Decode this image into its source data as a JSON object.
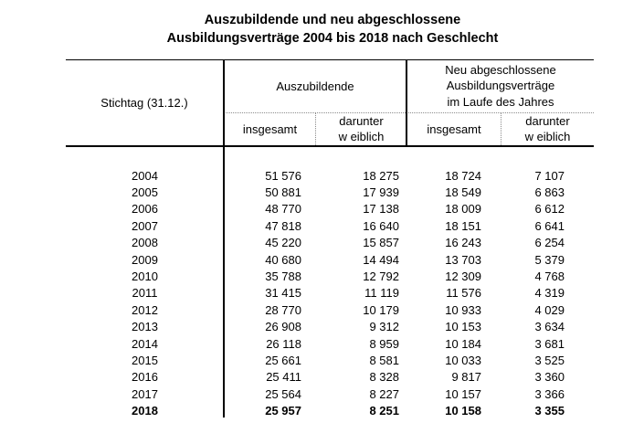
{
  "page": {
    "background_color": "#ffffff",
    "text_color": "#000000",
    "rule_color": "#000000",
    "dotted_rule_color": "#8c8c8c"
  },
  "title": {
    "line1": "Auszubildende und neu abgeschlossene",
    "line2": "Ausbildungsverträge 2004 bis 2018 nach Geschlecht"
  },
  "table": {
    "header": {
      "stichtag_label": "Stichtag (31.12.)",
      "group_auszubildende": "Auszubildende",
      "group_neu_lines": [
        "Neu abgeschlossene",
        "Ausbildungsverträge",
        "im Laufe des Jahres"
      ],
      "sub_insgesamt_1": "insgesamt",
      "sub_darunter_1_line1": "darunter",
      "sub_darunter_1_line2": "w eiblich",
      "sub_insgesamt_2": "insgesamt",
      "sub_darunter_2_line1": "darunter",
      "sub_darunter_2_line2": "w eiblich"
    },
    "rows": [
      {
        "year": "2004",
        "values": [
          "51 576",
          "18 275",
          "18 724",
          "7 107"
        ],
        "bold": false
      },
      {
        "year": "2005",
        "values": [
          "50 881",
          "17 939",
          "18 549",
          "6 863"
        ],
        "bold": false
      },
      {
        "year": "2006",
        "values": [
          "48 770",
          "17 138",
          "18 009",
          "6 612"
        ],
        "bold": false
      },
      {
        "year": "2007",
        "values": [
          "47 818",
          "16 640",
          "18 151",
          "6 641"
        ],
        "bold": false
      },
      {
        "year": "2008",
        "values": [
          "45 220",
          "15 857",
          "16 243",
          "6 254"
        ],
        "bold": false
      },
      {
        "year": "2009",
        "values": [
          "40 680",
          "14 494",
          "13 703",
          "5 379"
        ],
        "bold": false
      },
      {
        "year": "2010",
        "values": [
          "35 788",
          "12 792",
          "12 309",
          "4 768"
        ],
        "bold": false
      },
      {
        "year": "2011",
        "values": [
          "31 415",
          "11 119",
          "11 576",
          "4 319"
        ],
        "bold": false
      },
      {
        "year": "2012",
        "values": [
          "28 770",
          "10 179",
          "10 933",
          "4 029"
        ],
        "bold": false
      },
      {
        "year": "2013",
        "values": [
          "26 908",
          "9 312",
          "10 153",
          "3 634"
        ],
        "bold": false
      },
      {
        "year": "2014",
        "values": [
          "26 118",
          "8 959",
          "10 184",
          "3 681"
        ],
        "bold": false
      },
      {
        "year": "2015",
        "values": [
          "25 661",
          "8 581",
          "10 033",
          "3 525"
        ],
        "bold": false
      },
      {
        "year": "2016",
        "values": [
          "25 411",
          "8 328",
          "9 817",
          "3 360"
        ],
        "bold": false
      },
      {
        "year": "2017",
        "values": [
          "25 564",
          "8 227",
          "10 157",
          "3 366"
        ],
        "bold": false
      },
      {
        "year": "2018",
        "values": [
          "25 957",
          "8 251",
          "10 158",
          "3 355"
        ],
        "bold": true
      }
    ]
  },
  "chart_data": {
    "type": "table",
    "title": "Auszubildende und neu abgeschlossene Ausbildungsverträge 2004 bis 2018 nach Geschlecht",
    "columns": [
      "Stichtag (31.12.)",
      "Auszubildende insgesamt",
      "Auszubildende darunter weiblich",
      "Neu abgeschlossene Ausbildungsverträge im Laufe des Jahres insgesamt",
      "Neu abgeschlossene Ausbildungsverträge im Laufe des Jahres darunter weiblich"
    ],
    "rows": [
      [
        2004,
        51576,
        18275,
        18724,
        7107
      ],
      [
        2005,
        50881,
        17939,
        18549,
        6863
      ],
      [
        2006,
        48770,
        17138,
        18009,
        6612
      ],
      [
        2007,
        47818,
        16640,
        18151,
        6641
      ],
      [
        2008,
        45220,
        15857,
        16243,
        6254
      ],
      [
        2009,
        40680,
        14494,
        13703,
        5379
      ],
      [
        2010,
        35788,
        12792,
        12309,
        4768
      ],
      [
        2011,
        31415,
        11119,
        11576,
        4319
      ],
      [
        2012,
        28770,
        10179,
        10933,
        4029
      ],
      [
        2013,
        26908,
        9312,
        10153,
        3634
      ],
      [
        2014,
        26118,
        8959,
        10184,
        3681
      ],
      [
        2015,
        25661,
        8581,
        10033,
        3525
      ],
      [
        2016,
        25411,
        8328,
        9817,
        3360
      ],
      [
        2017,
        25564,
        8227,
        10157,
        3366
      ],
      [
        2018,
        25957,
        8251,
        10158,
        3355
      ]
    ]
  }
}
